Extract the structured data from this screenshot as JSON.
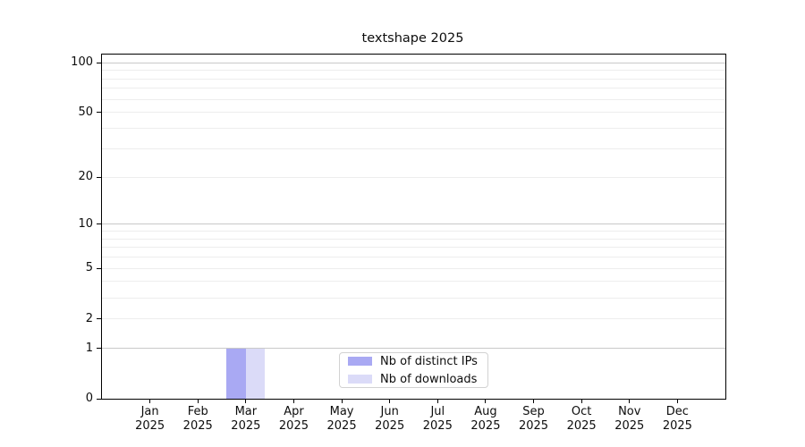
{
  "title": "textshape 2025",
  "chart_data": {
    "type": "bar",
    "title": "textshape 2025",
    "categories": [
      "Jan 2025",
      "Feb 2025",
      "Mar 2025",
      "Apr 2025",
      "May 2025",
      "Jun 2025",
      "Jul 2025",
      "Aug 2025",
      "Sep 2025",
      "Oct 2025",
      "Nov 2025",
      "Dec 2025"
    ],
    "x_tick_month_line": [
      "Jan",
      "Feb",
      "Mar",
      "Apr",
      "May",
      "Jun",
      "Jul",
      "Aug",
      "Sep",
      "Oct",
      "Nov",
      "Dec"
    ],
    "x_tick_year_line": "2025",
    "series": [
      {
        "name": "Nb of distinct IPs",
        "color": "#a9a9f3",
        "values": [
          0,
          0,
          1,
          0,
          0,
          0,
          0,
          0,
          0,
          0,
          0,
          0
        ]
      },
      {
        "name": "Nb of downloads",
        "color": "#dbdbf8",
        "values": [
          0,
          0,
          1,
          0,
          0,
          0,
          0,
          0,
          0,
          0,
          0,
          0
        ]
      }
    ],
    "xlabel": "",
    "ylabel": "",
    "y_scale": "log1p",
    "y_ticks": [
      0,
      1,
      2,
      5,
      10,
      20,
      50,
      100
    ],
    "y_major_gridlines": [
      1,
      10,
      100
    ],
    "y_minor_gridlines": [
      2,
      3,
      4,
      5,
      6,
      7,
      8,
      9,
      20,
      30,
      40,
      50,
      60,
      70,
      80,
      90
    ],
    "ylim": [
      0,
      112
    ],
    "grid": "horizontal; darker lines at 1/10/100, faint minors",
    "legend_position": "lower center inside plot"
  },
  "legend": {
    "items": [
      {
        "label": "Nb of distinct IPs",
        "color": "#a9a9f3"
      },
      {
        "label": "Nb of downloads",
        "color": "#dbdbf8"
      }
    ]
  },
  "colors": {
    "background": "#ffffff",
    "frame": "#000000",
    "major_grid": "#c9c9c9",
    "minor_grid": "#ededed",
    "text": "#0d0d0d"
  }
}
